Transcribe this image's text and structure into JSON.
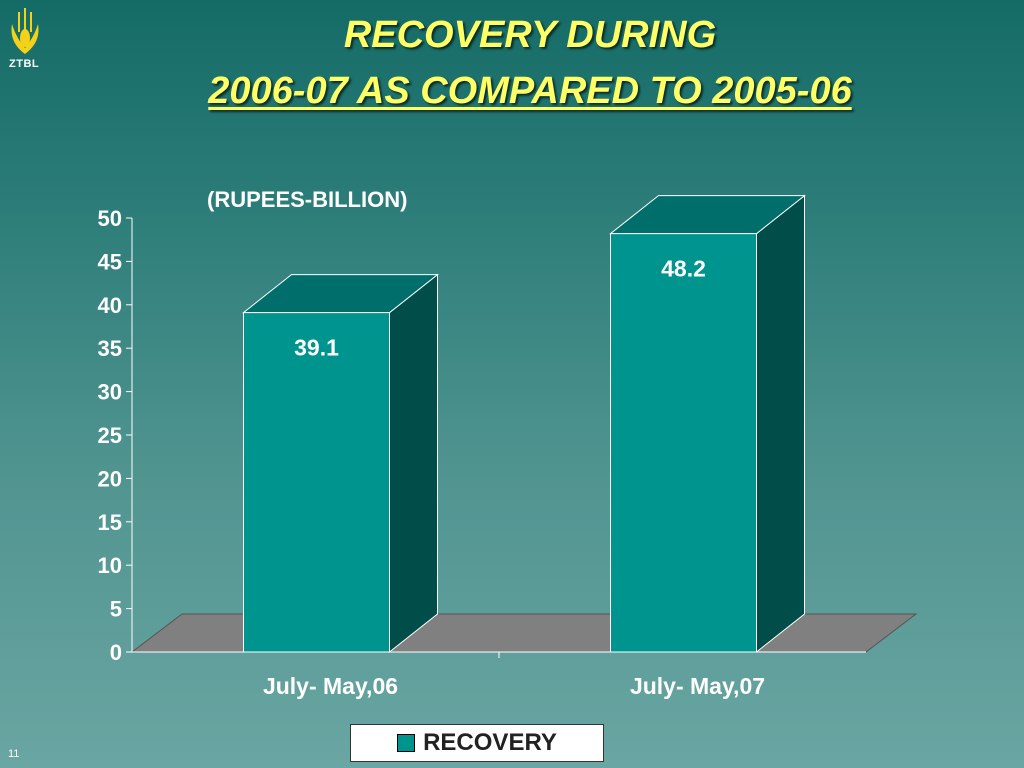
{
  "logo": {
    "text": "ZTBL"
  },
  "title": {
    "line1": "RECOVERY DURING",
    "line2": "2006-07 AS COMPARED TO 2005-06"
  },
  "unit_label": "(RUPEES-BILLION)",
  "slide_number": "11",
  "colors": {
    "bar_front": "#00948f",
    "bar_side": "#004d4a",
    "bar_top": "#006f6b",
    "floor": "#808080",
    "title": "#ffff66"
  },
  "chart_data": {
    "type": "bar",
    "categories": [
      "July- May,06",
      "July- May,07"
    ],
    "series": [
      {
        "name": "RECOVERY",
        "values": [
          39.1,
          48.2
        ]
      }
    ],
    "data_labels": [
      "39.1",
      "48.2"
    ],
    "ylim": [
      0,
      50
    ],
    "yticks": [
      0,
      5,
      10,
      15,
      20,
      25,
      30,
      35,
      40,
      45,
      50
    ],
    "legend": "bottom",
    "grid": false,
    "style": "3d"
  }
}
